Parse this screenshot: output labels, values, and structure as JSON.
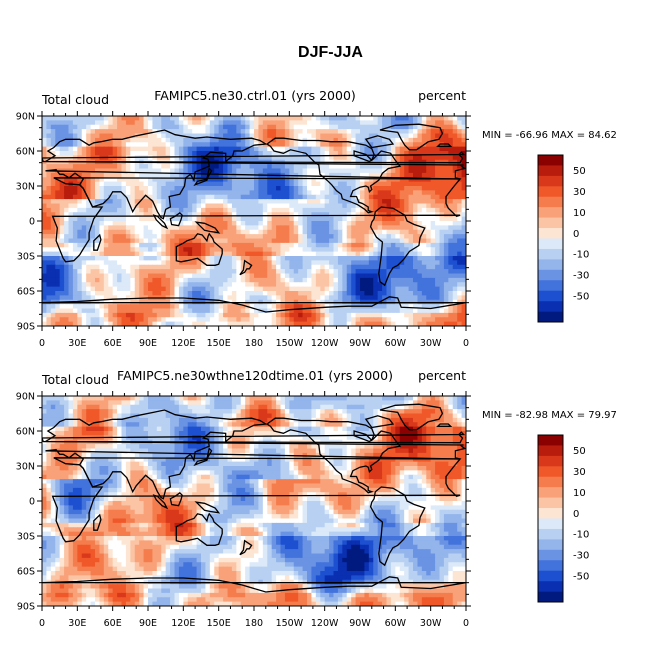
{
  "figure": {
    "title": "DJF-JJA"
  },
  "chart_data": [
    {
      "type": "heatmap",
      "title": "FAMIPC5.ne30.ctrl.01 (yrs 2000)",
      "left_label": "Total cloud",
      "units": "percent",
      "min_max": "MIN = -66.96 MAX =  84.62",
      "min": -66.96,
      "max": 84.62,
      "x_ticks": [
        "0",
        "30E",
        "60E",
        "90E",
        "120E",
        "150E",
        "180",
        "150W",
        "120W",
        "90W",
        "60W",
        "30W",
        "0"
      ],
      "y_ticks": [
        "90N",
        "60N",
        "30N",
        "0",
        "30S",
        "60S",
        "90S"
      ],
      "colorbar_labels": [
        "50",
        "30",
        "10",
        "0",
        "-10",
        "-30",
        "-50"
      ],
      "lat_range": [
        -90,
        90
      ],
      "lon_range": [
        0,
        360
      ],
      "seed": 1
    },
    {
      "type": "heatmap",
      "title": "FAMIPC5.ne30wthne120dtime.01 (yrs 2000)",
      "left_label": "Total cloud",
      "units": "percent",
      "min_max": "MIN = -82.98 MAX =  79.97",
      "min": -82.98,
      "max": 79.97,
      "x_ticks": [
        "0",
        "30E",
        "60E",
        "90E",
        "120E",
        "150E",
        "180",
        "150W",
        "120W",
        "90W",
        "60W",
        "30W",
        "0"
      ],
      "y_ticks": [
        "90N",
        "60N",
        "30N",
        "0",
        "30S",
        "60S",
        "90S"
      ],
      "colorbar_labels": [
        "50",
        "30",
        "10",
        "0",
        "-10",
        "-30",
        "-50"
      ],
      "lat_range": [
        -90,
        90
      ],
      "lon_range": [
        0,
        360
      ],
      "seed": 2
    }
  ],
  "palette": [
    "#8b0000",
    "#b81c0c",
    "#d9391a",
    "#f0582a",
    "#f57d4d",
    "#f9a27a",
    "#fbc5a5",
    "#fde5d3",
    "#ffffff",
    "#dce9f8",
    "#b8d1f2",
    "#93b5ec",
    "#6b93e3",
    "#4272db",
    "#1d50d0",
    "#0a2fb0",
    "#001a80"
  ]
}
